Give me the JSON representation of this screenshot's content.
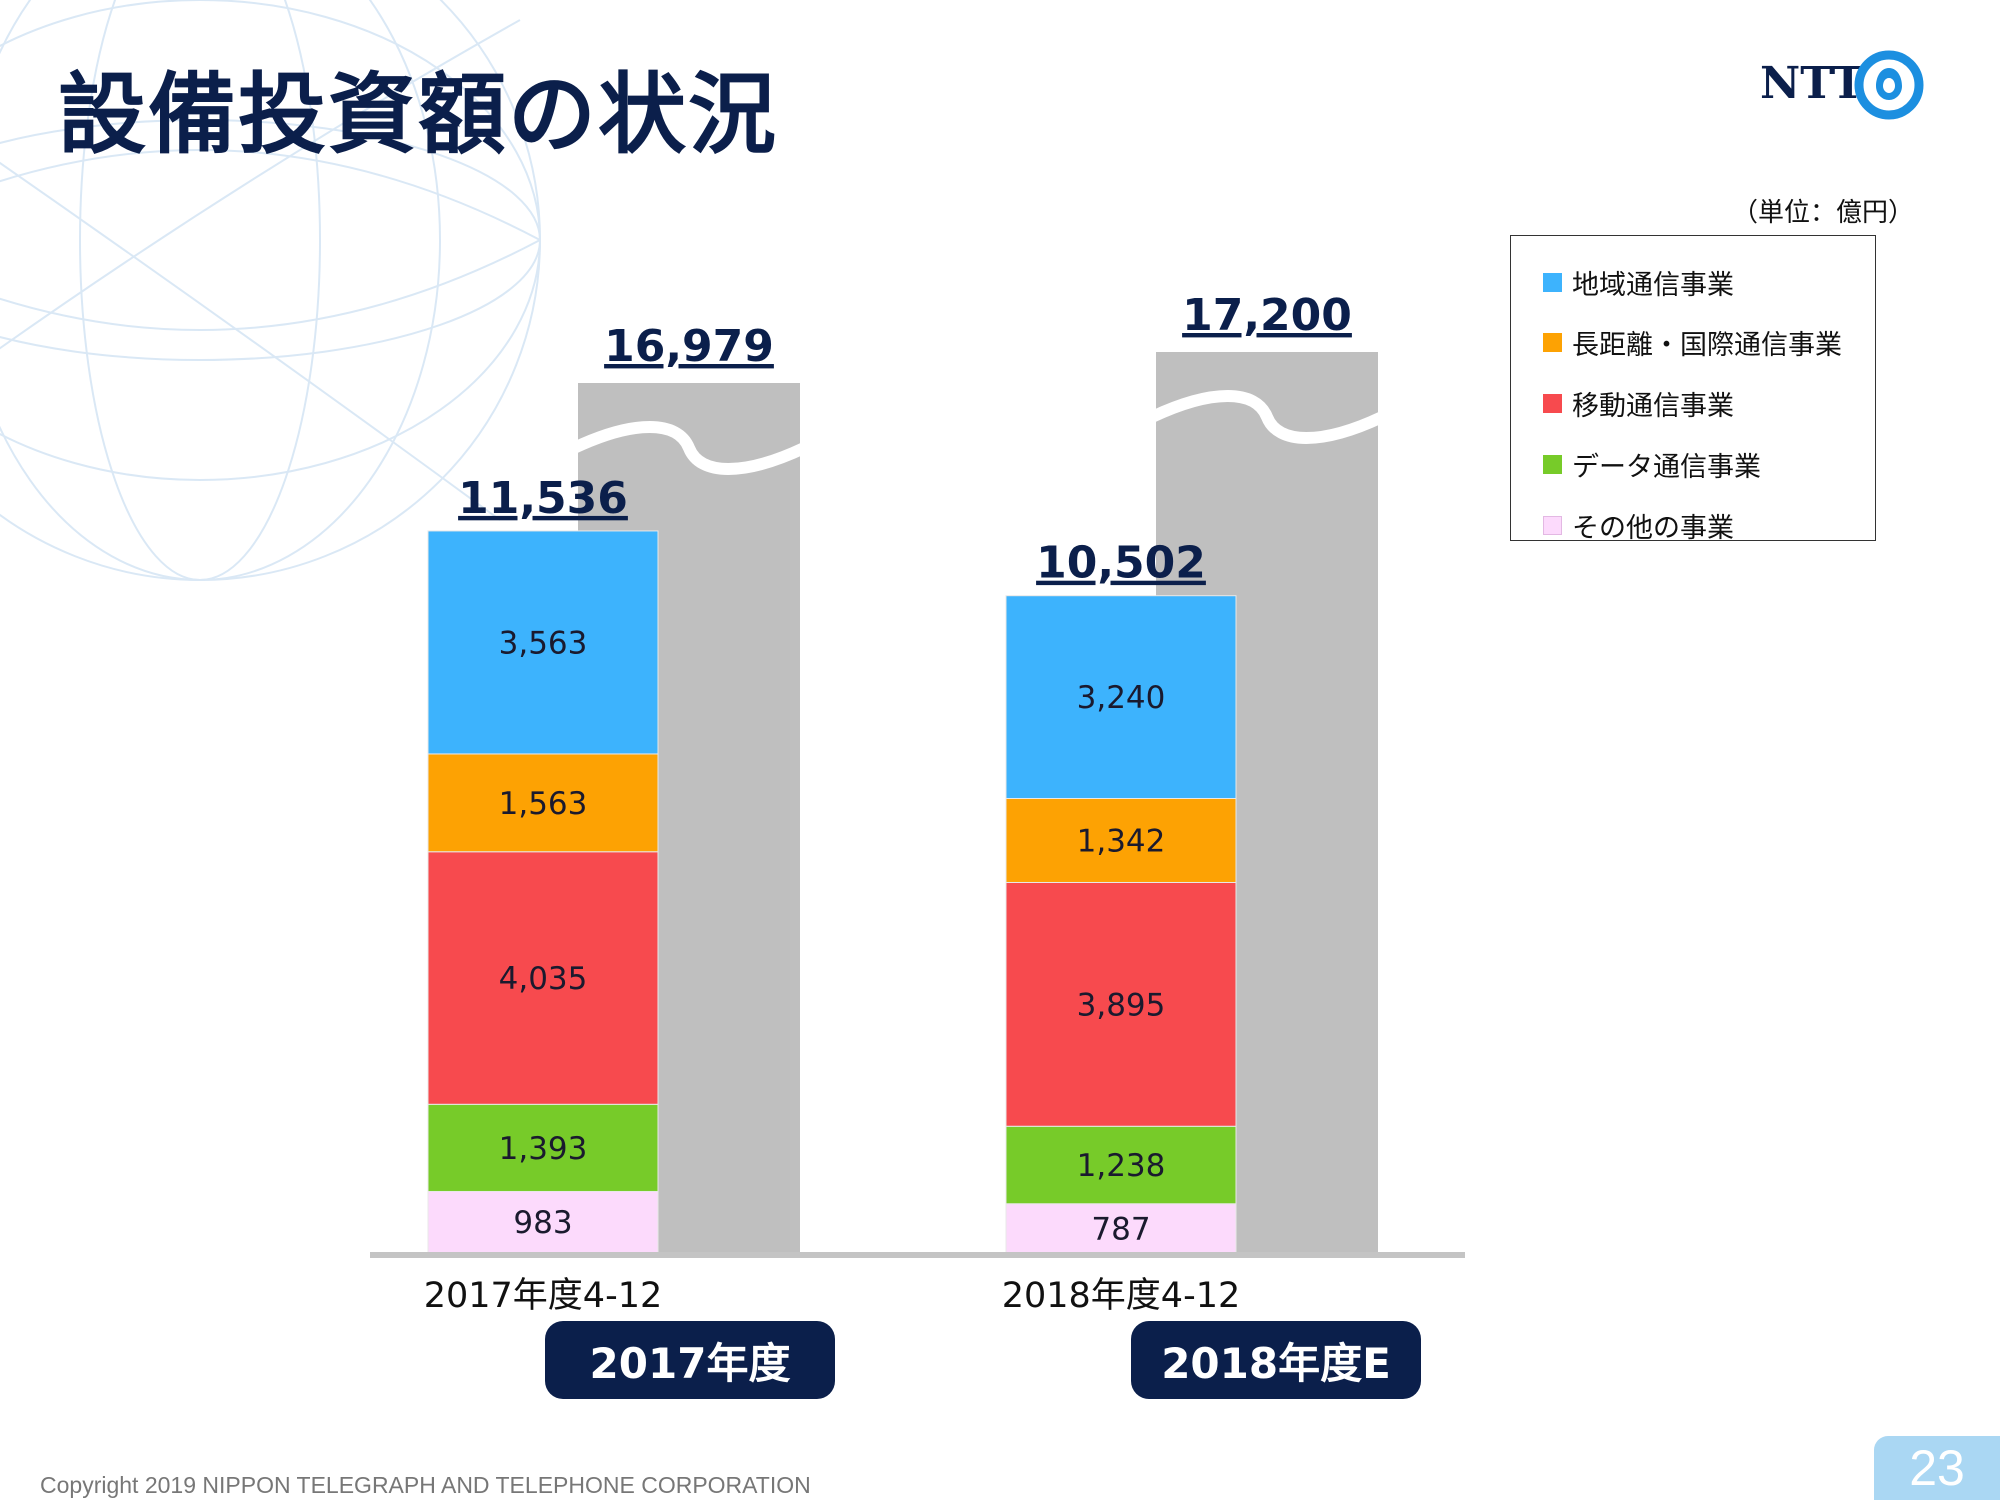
{
  "slide": {
    "title": "設備投資額の状況",
    "logo_text": "NTT",
    "unit_label": "（単位：億円）",
    "copyright": "Copyright 2019 NIPPON TELEGRAPH AND TELEPHONE CORPORATION",
    "page_number": "23"
  },
  "colors": {
    "title": "#0b1f4b",
    "pill": "#0b1f4b",
    "full_year_bar": "#bfbfbf",
    "baseline": "#c4c4c4"
  },
  "legend": {
    "items": [
      {
        "label": "地域通信事業",
        "color": "#3db3fd"
      },
      {
        "label": "長距離・国際通信事業",
        "color": "#fda203"
      },
      {
        "label": "移動通信事業",
        "color": "#f74a4e"
      },
      {
        "label": "データ通信事業",
        "color": "#77cb29"
      },
      {
        "label": "その他の事業",
        "color": "#fcdafc"
      }
    ]
  },
  "chart_data": {
    "type": "bar",
    "stacked": true,
    "unit": "億円",
    "categories": [
      "2017年度4-12",
      "2018年度4-12"
    ],
    "totals": [
      "11,536",
      "10,502"
    ],
    "series": [
      {
        "name": "地域通信事業",
        "values": [
          3563,
          3240
        ],
        "labels": [
          "3,563",
          "3,240"
        ],
        "color": "#3db3fd"
      },
      {
        "name": "長距離・国際通信事業",
        "values": [
          1563,
          1342
        ],
        "labels": [
          "1,563",
          "1,342"
        ],
        "color": "#fda203"
      },
      {
        "name": "移動通信事業",
        "values": [
          4035,
          3895
        ],
        "labels": [
          "4,035",
          "3,895"
        ],
        "color": "#f74a4e"
      },
      {
        "name": "データ通信事業",
        "values": [
          1393,
          1238
        ],
        "labels": [
          "1,393",
          "1,238"
        ],
        "color": "#77cb29"
      },
      {
        "name": "その他の事業",
        "values": [
          983,
          787
        ],
        "labels": [
          "983",
          "787"
        ],
        "color": "#fcdafc"
      }
    ],
    "full_year": {
      "categories": [
        "2017年度",
        "2018年度E"
      ],
      "values": [
        16979,
        17200
      ],
      "labels": [
        "16,979",
        "17,200"
      ],
      "axis_break": true
    },
    "ylim": [
      0,
      11536
    ],
    "grid": false,
    "legend_position": "top-right"
  }
}
